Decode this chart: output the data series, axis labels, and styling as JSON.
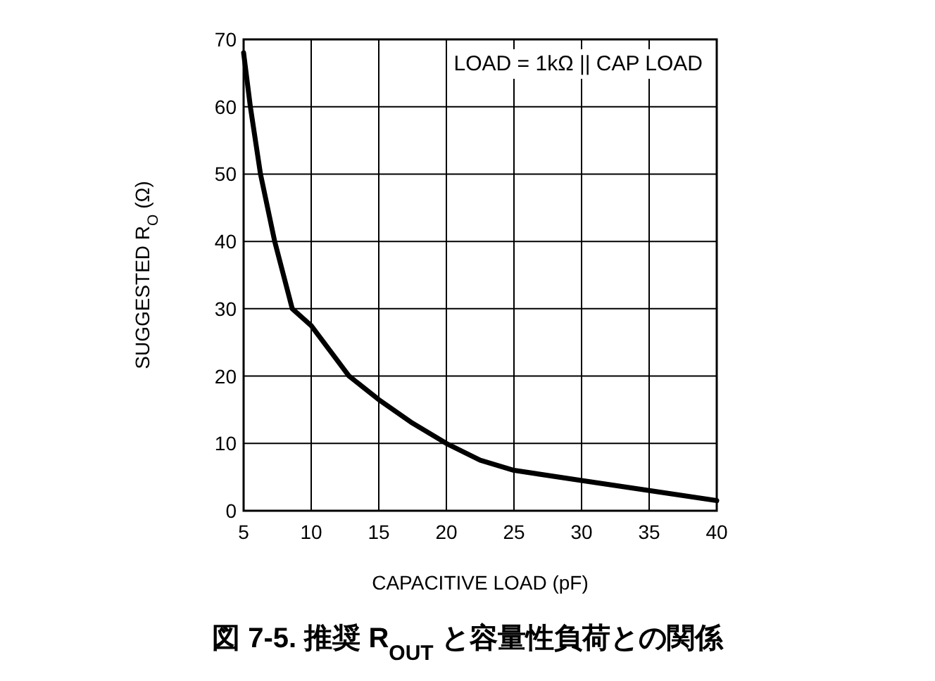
{
  "chart_data": {
    "type": "line",
    "title": "図 7-5. 推奨 R$_{OUT}$ と容量性負荷との関係",
    "xlabel": "CAPACITIVE LOAD (pF)",
    "ylabel": "SUGGESTED R$_{O}$ (Ω)",
    "annotations": [
      "LOAD = 1kΩ || CAP LOAD"
    ],
    "series": [
      {
        "color": "#000000",
        "x": [
          5,
          5.5,
          6.25,
          7.3,
          8.6,
          10,
          12.8,
          15,
          17.5,
          20,
          22.5,
          25,
          30,
          35,
          40
        ],
        "values": [
          68,
          60,
          50,
          40,
          30,
          27.5,
          20,
          16.5,
          13,
          10,
          7.5,
          6,
          4.5,
          3,
          1.5
        ]
      }
    ],
    "xlim": [
      5,
      40
    ],
    "ylim": [
      0,
      70
    ],
    "xticks": [
      5,
      10,
      15,
      20,
      25,
      30,
      35,
      40
    ],
    "yticks": [
      0,
      10,
      20,
      30,
      40,
      50,
      60,
      70
    ],
    "grid": true,
    "marker": "none",
    "line_style": "solid"
  }
}
